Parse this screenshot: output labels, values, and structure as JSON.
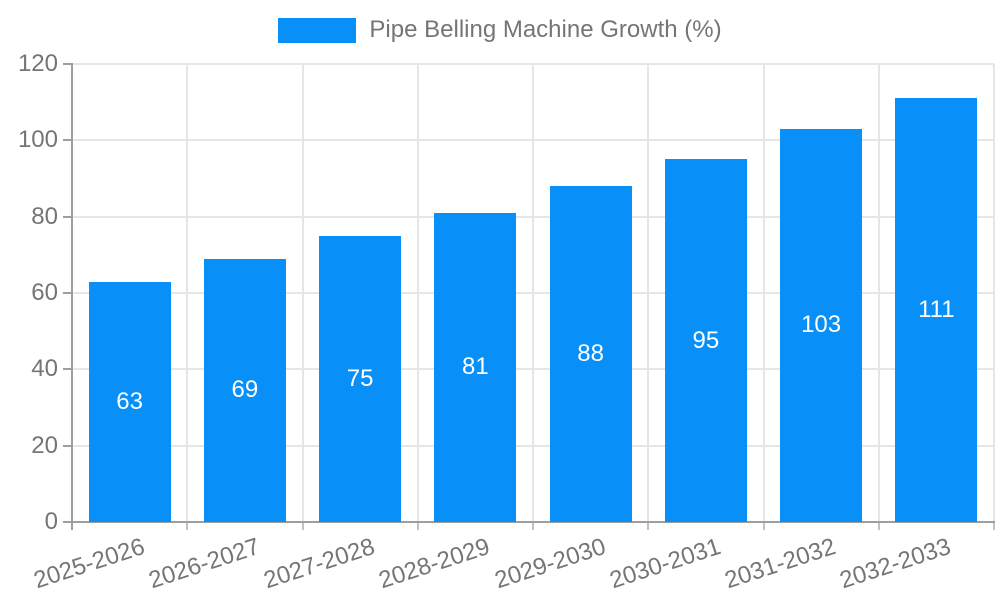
{
  "chart_data": {
    "type": "bar",
    "title": "Pipe Belling Machine Growth (%)",
    "categories": [
      "2025-2026",
      "2026-2027",
      "2027-2028",
      "2028-2029",
      "2029-2030",
      "2030-2031",
      "2031-2032",
      "2032-2033"
    ],
    "values": [
      63,
      69,
      75,
      81,
      88,
      95,
      103,
      111
    ],
    "xlabel": "",
    "ylabel": "",
    "ylim": [
      0,
      120
    ],
    "yticks": [
      0,
      20,
      40,
      60,
      80,
      100,
      120
    ],
    "grid": true,
    "legend_position": "top-center",
    "value_label_position": "inside-center",
    "x_label_rotation_deg": -18,
    "colors": {
      "bar": "#0890f8",
      "grid": "#e6e6e6",
      "axis": "#9e9e9e",
      "x_tick": "#c2c2c2",
      "text": "#757575",
      "value_label": "#ffffff"
    }
  }
}
